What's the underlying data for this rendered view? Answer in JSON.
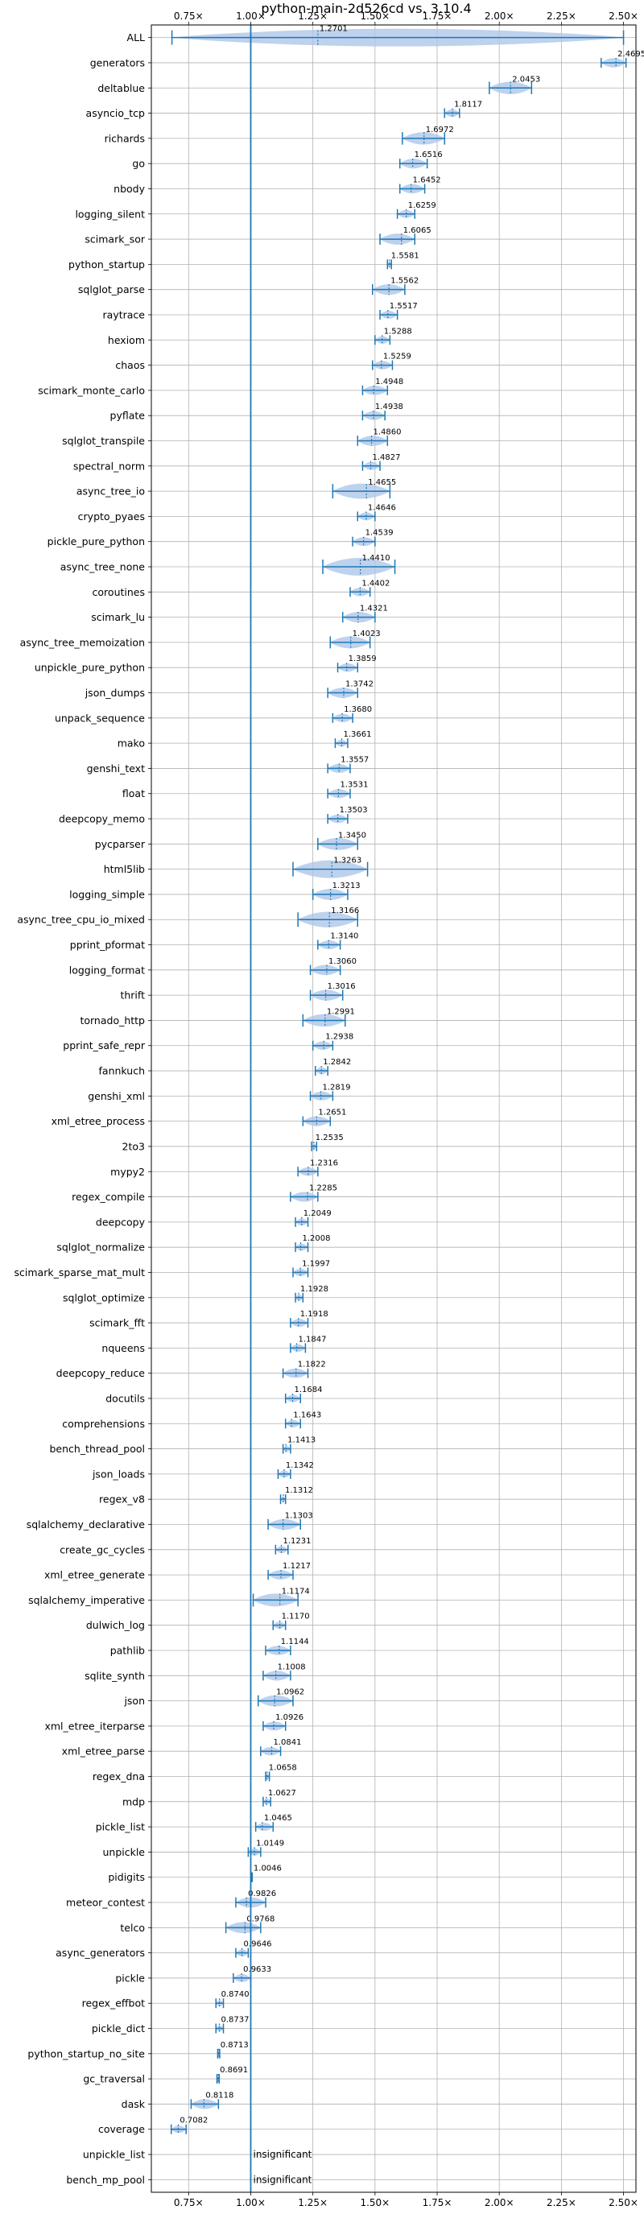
{
  "chart_data": {
    "type": "violin",
    "title": "python-main-2d526cd vs. 3.10.4",
    "xlim": [
      0.6,
      2.55
    ],
    "xticks": [
      0.75,
      1.0,
      1.25,
      1.5,
      1.75,
      2.0,
      2.25,
      2.5
    ],
    "xtick_labels": [
      "0.75×",
      "1.00×",
      "1.25×",
      "1.50×",
      "1.75×",
      "2.00×",
      "2.25×",
      "2.50×"
    ],
    "reference_line": 1.0,
    "grid": true,
    "colors": {
      "line": "#1f77b4",
      "violin": "#aec7e8",
      "grid": "#b0b0b0"
    },
    "rows": [
      {
        "name": "ALL",
        "value": 1.2701,
        "min": 0.6829,
        "max": 2.5,
        "label": "1.2701"
      },
      {
        "name": "generators",
        "value": 2.4695,
        "min": 2.41,
        "max": 2.51,
        "label": "2.4695"
      },
      {
        "name": "deltablue",
        "value": 2.0453,
        "min": 1.96,
        "max": 2.13,
        "label": "2.0453"
      },
      {
        "name": "asyncio_tcp",
        "value": 1.8117,
        "min": 1.78,
        "max": 1.84,
        "label": "1.8117"
      },
      {
        "name": "richards",
        "value": 1.6972,
        "min": 1.61,
        "max": 1.78,
        "label": "1.6972"
      },
      {
        "name": "go",
        "value": 1.6516,
        "min": 1.6,
        "max": 1.71,
        "label": "1.6516"
      },
      {
        "name": "nbody",
        "value": 1.6452,
        "min": 1.6,
        "max": 1.7,
        "label": "1.6452"
      },
      {
        "name": "logging_silent",
        "value": 1.6259,
        "min": 1.59,
        "max": 1.66,
        "label": "1.6259"
      },
      {
        "name": "scimark_sor",
        "value": 1.6065,
        "min": 1.52,
        "max": 1.66,
        "label": "1.6065"
      },
      {
        "name": "python_startup",
        "value": 1.5581,
        "min": 1.55,
        "max": 1.566,
        "label": "1.5581"
      },
      {
        "name": "sqlglot_parse",
        "value": 1.5562,
        "min": 1.49,
        "max": 1.62,
        "label": "1.5562"
      },
      {
        "name": "raytrace",
        "value": 1.5517,
        "min": 1.52,
        "max": 1.59,
        "label": "1.5517"
      },
      {
        "name": "hexiom",
        "value": 1.5288,
        "min": 1.5,
        "max": 1.56,
        "label": "1.5288"
      },
      {
        "name": "chaos",
        "value": 1.5259,
        "min": 1.49,
        "max": 1.57,
        "label": "1.5259"
      },
      {
        "name": "scimark_monte_carlo",
        "value": 1.4948,
        "min": 1.45,
        "max": 1.55,
        "label": "1.4948"
      },
      {
        "name": "pyflate",
        "value": 1.4938,
        "min": 1.45,
        "max": 1.54,
        "label": "1.4938"
      },
      {
        "name": "sqlglot_transpile",
        "value": 1.486,
        "min": 1.43,
        "max": 1.55,
        "label": "1.4860"
      },
      {
        "name": "spectral_norm",
        "value": 1.4827,
        "min": 1.45,
        "max": 1.52,
        "label": "1.4827"
      },
      {
        "name": "async_tree_io",
        "value": 1.4655,
        "min": 1.33,
        "max": 1.56,
        "label": "1.4655"
      },
      {
        "name": "crypto_pyaes",
        "value": 1.4646,
        "min": 1.43,
        "max": 1.5,
        "label": "1.4646"
      },
      {
        "name": "pickle_pure_python",
        "value": 1.4539,
        "min": 1.41,
        "max": 1.5,
        "label": "1.4539"
      },
      {
        "name": "async_tree_none",
        "value": 1.441,
        "min": 1.29,
        "max": 1.58,
        "label": "1.4410"
      },
      {
        "name": "coroutines",
        "value": 1.4402,
        "min": 1.4,
        "max": 1.48,
        "label": "1.4402"
      },
      {
        "name": "scimark_lu",
        "value": 1.4321,
        "min": 1.37,
        "max": 1.5,
        "label": "1.4321"
      },
      {
        "name": "async_tree_memoization",
        "value": 1.4023,
        "min": 1.32,
        "max": 1.48,
        "label": "1.4023"
      },
      {
        "name": "unpickle_pure_python",
        "value": 1.3859,
        "min": 1.35,
        "max": 1.43,
        "label": "1.3859"
      },
      {
        "name": "json_dumps",
        "value": 1.3742,
        "min": 1.31,
        "max": 1.43,
        "label": "1.3742"
      },
      {
        "name": "unpack_sequence",
        "value": 1.368,
        "min": 1.33,
        "max": 1.41,
        "label": "1.3680"
      },
      {
        "name": "mako",
        "value": 1.3661,
        "min": 1.34,
        "max": 1.39,
        "label": "1.3661"
      },
      {
        "name": "genshi_text",
        "value": 1.3557,
        "min": 1.31,
        "max": 1.4,
        "label": "1.3557"
      },
      {
        "name": "float",
        "value": 1.3531,
        "min": 1.31,
        "max": 1.4,
        "label": "1.3531"
      },
      {
        "name": "deepcopy_memo",
        "value": 1.3503,
        "min": 1.31,
        "max": 1.39,
        "label": "1.3503"
      },
      {
        "name": "pycparser",
        "value": 1.345,
        "min": 1.27,
        "max": 1.43,
        "label": "1.3450"
      },
      {
        "name": "html5lib",
        "value": 1.3263,
        "min": 1.17,
        "max": 1.47,
        "label": "1.3263"
      },
      {
        "name": "logging_simple",
        "value": 1.3213,
        "min": 1.25,
        "max": 1.39,
        "label": "1.3213"
      },
      {
        "name": "async_tree_cpu_io_mixed",
        "value": 1.3166,
        "min": 1.19,
        "max": 1.43,
        "label": "1.3166"
      },
      {
        "name": "pprint_pformat",
        "value": 1.314,
        "min": 1.27,
        "max": 1.36,
        "label": "1.3140"
      },
      {
        "name": "logging_format",
        "value": 1.306,
        "min": 1.24,
        "max": 1.36,
        "label": "1.3060"
      },
      {
        "name": "thrift",
        "value": 1.3016,
        "min": 1.24,
        "max": 1.37,
        "label": "1.3016"
      },
      {
        "name": "tornado_http",
        "value": 1.2991,
        "min": 1.21,
        "max": 1.38,
        "label": "1.2991"
      },
      {
        "name": "pprint_safe_repr",
        "value": 1.2938,
        "min": 1.25,
        "max": 1.33,
        "label": "1.2938"
      },
      {
        "name": "fannkuch",
        "value": 1.2842,
        "min": 1.26,
        "max": 1.31,
        "label": "1.2842"
      },
      {
        "name": "genshi_xml",
        "value": 1.2819,
        "min": 1.24,
        "max": 1.33,
        "label": "1.2819"
      },
      {
        "name": "xml_etree_process",
        "value": 1.2651,
        "min": 1.21,
        "max": 1.32,
        "label": "1.2651"
      },
      {
        "name": "2to3",
        "value": 1.2535,
        "min": 1.245,
        "max": 1.265,
        "label": "1.2535"
      },
      {
        "name": "mypy2",
        "value": 1.2316,
        "min": 1.19,
        "max": 1.27,
        "label": "1.2316"
      },
      {
        "name": "regex_compile",
        "value": 1.2285,
        "min": 1.16,
        "max": 1.27,
        "label": "1.2285"
      },
      {
        "name": "deepcopy",
        "value": 1.2049,
        "min": 1.18,
        "max": 1.23,
        "label": "1.2049"
      },
      {
        "name": "sqlglot_normalize",
        "value": 1.2008,
        "min": 1.18,
        "max": 1.23,
        "label": "1.2008"
      },
      {
        "name": "scimark_sparse_mat_mult",
        "value": 1.1997,
        "min": 1.17,
        "max": 1.23,
        "label": "1.1997"
      },
      {
        "name": "sqlglot_optimize",
        "value": 1.1928,
        "min": 1.18,
        "max": 1.21,
        "label": "1.1928"
      },
      {
        "name": "scimark_fft",
        "value": 1.1918,
        "min": 1.16,
        "max": 1.23,
        "label": "1.1918"
      },
      {
        "name": "nqueens",
        "value": 1.1847,
        "min": 1.16,
        "max": 1.22,
        "label": "1.1847"
      },
      {
        "name": "deepcopy_reduce",
        "value": 1.1822,
        "min": 1.13,
        "max": 1.23,
        "label": "1.1822"
      },
      {
        "name": "docutils",
        "value": 1.1684,
        "min": 1.14,
        "max": 1.2,
        "label": "1.1684"
      },
      {
        "name": "comprehensions",
        "value": 1.1643,
        "min": 1.14,
        "max": 1.2,
        "label": "1.1643"
      },
      {
        "name": "bench_thread_pool",
        "value": 1.1413,
        "min": 1.13,
        "max": 1.16,
        "label": "1.1413"
      },
      {
        "name": "json_loads",
        "value": 1.1342,
        "min": 1.11,
        "max": 1.16,
        "label": "1.1342"
      },
      {
        "name": "regex_v8",
        "value": 1.1312,
        "min": 1.12,
        "max": 1.14,
        "label": "1.1312"
      },
      {
        "name": "sqlalchemy_declarative",
        "value": 1.1303,
        "min": 1.07,
        "max": 1.2,
        "label": "1.1303"
      },
      {
        "name": "create_gc_cycles",
        "value": 1.1231,
        "min": 1.1,
        "max": 1.15,
        "label": "1.1231"
      },
      {
        "name": "xml_etree_generate",
        "value": 1.1217,
        "min": 1.07,
        "max": 1.17,
        "label": "1.1217"
      },
      {
        "name": "sqlalchemy_imperative",
        "value": 1.1174,
        "min": 1.01,
        "max": 1.19,
        "label": "1.1174"
      },
      {
        "name": "dulwich_log",
        "value": 1.117,
        "min": 1.09,
        "max": 1.14,
        "label": "1.1170"
      },
      {
        "name": "pathlib",
        "value": 1.1144,
        "min": 1.06,
        "max": 1.16,
        "label": "1.1144"
      },
      {
        "name": "sqlite_synth",
        "value": 1.1008,
        "min": 1.05,
        "max": 1.16,
        "label": "1.1008"
      },
      {
        "name": "json",
        "value": 1.0962,
        "min": 1.03,
        "max": 1.17,
        "label": "1.0962"
      },
      {
        "name": "xml_etree_iterparse",
        "value": 1.0926,
        "min": 1.05,
        "max": 1.14,
        "label": "1.0926"
      },
      {
        "name": "xml_etree_parse",
        "value": 1.0841,
        "min": 1.04,
        "max": 1.12,
        "label": "1.0841"
      },
      {
        "name": "regex_dna",
        "value": 1.0658,
        "min": 1.06,
        "max": 1.075,
        "label": "1.0658"
      },
      {
        "name": "mdp",
        "value": 1.0627,
        "min": 1.05,
        "max": 1.08,
        "label": "1.0627"
      },
      {
        "name": "pickle_list",
        "value": 1.0465,
        "min": 1.02,
        "max": 1.09,
        "label": "1.0465"
      },
      {
        "name": "unpickle",
        "value": 1.0149,
        "min": 0.99,
        "max": 1.04,
        "label": "1.0149"
      },
      {
        "name": "pidigits",
        "value": 1.0046,
        "min": 1.003,
        "max": 1.006,
        "label": "1.0046"
      },
      {
        "name": "meteor_contest",
        "value": 0.9826,
        "min": 0.94,
        "max": 1.06,
        "label": "0.9826"
      },
      {
        "name": "telco",
        "value": 0.9768,
        "min": 0.9,
        "max": 1.04,
        "label": "0.9768"
      },
      {
        "name": "async_generators",
        "value": 0.9646,
        "min": 0.94,
        "max": 0.99,
        "label": "0.9646"
      },
      {
        "name": "pickle",
        "value": 0.9633,
        "min": 0.93,
        "max": 1.0,
        "label": "0.9633"
      },
      {
        "name": "regex_effbot",
        "value": 0.874,
        "min": 0.86,
        "max": 0.89,
        "label": "0.8740"
      },
      {
        "name": "pickle_dict",
        "value": 0.8737,
        "min": 0.86,
        "max": 0.89,
        "label": "0.8737"
      },
      {
        "name": "python_startup_no_site",
        "value": 0.8713,
        "min": 0.867,
        "max": 0.875,
        "label": "0.8713"
      },
      {
        "name": "gc_traversal",
        "value": 0.8691,
        "min": 0.864,
        "max": 0.873,
        "label": "0.8691"
      },
      {
        "name": "dask",
        "value": 0.8118,
        "min": 0.76,
        "max": 0.87,
        "label": "0.8118"
      },
      {
        "name": "coverage",
        "value": 0.7082,
        "min": 0.68,
        "max": 0.74,
        "label": "0.7082"
      },
      {
        "name": "unpickle_list",
        "value": null,
        "label": "insignificant"
      },
      {
        "name": "bench_mp_pool",
        "value": null,
        "label": "insignificant"
      }
    ]
  }
}
